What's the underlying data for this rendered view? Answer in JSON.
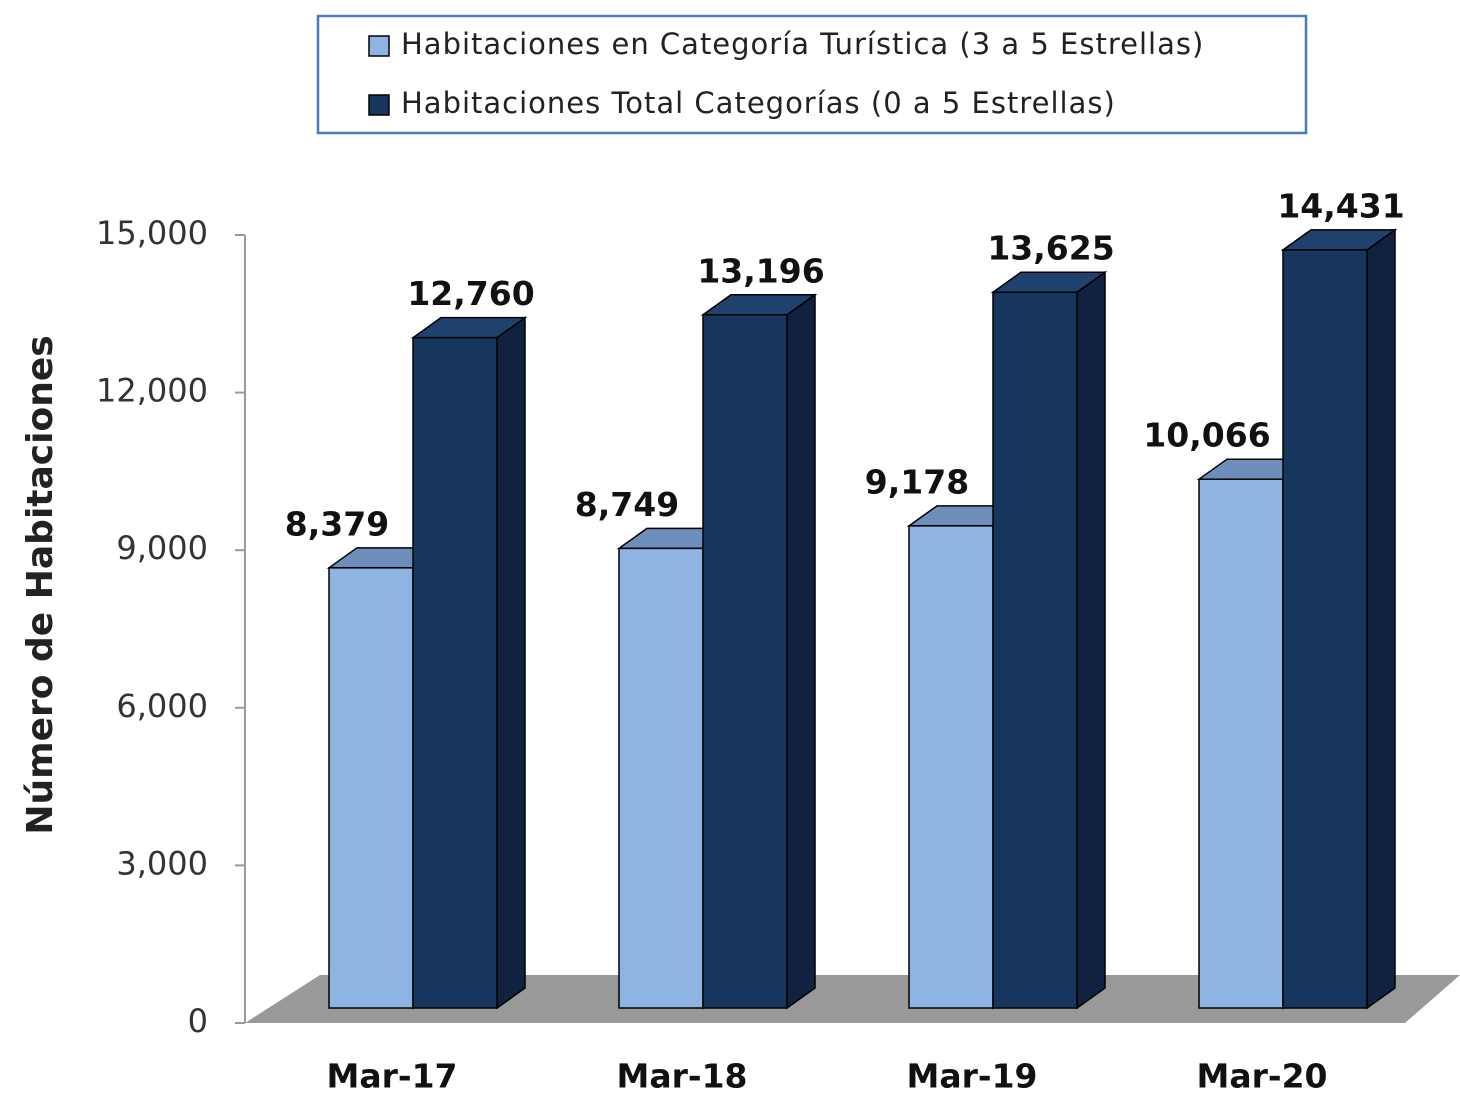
{
  "chart_data": {
    "type": "bar3d",
    "y_axis_label": "Número de Habitaciones",
    "categories": [
      "Mar-17",
      "Mar-18",
      "Mar-19",
      "Mar-20"
    ],
    "series": [
      {
        "name": "Habitaciones en Categoría Turística (3 a 5 Estrellas)",
        "color": "#8db4e2",
        "top_color": "#6d8dba",
        "side_color": "#5a7aa5",
        "values": [
          8379,
          8749,
          9178,
          10066
        ],
        "value_labels": [
          "8,379",
          "8,749",
          "9,178",
          "10,066"
        ]
      },
      {
        "name": "Habitaciones Total Categorías (0 a 5 Estrellas)",
        "color": "#17365d",
        "top_color": "#1f416d",
        "side_color": "#10223f",
        "values": [
          12760,
          13196,
          13625,
          14431
        ],
        "value_labels": [
          "12,760",
          "13,196",
          "13,625",
          "14,431"
        ]
      }
    ],
    "ylim": [
      0,
      15000
    ],
    "yticks": [
      0,
      {
        "value": 3000,
        "label": "3,000"
      },
      {
        "value": 6000,
        "label": "6,000"
      },
      {
        "value": 9000,
        "label": "9,000"
      },
      {
        "value": 12000,
        "label": "12,000"
      },
      {
        "value": 15000,
        "label": "15,000"
      }
    ],
    "legend": "top"
  }
}
